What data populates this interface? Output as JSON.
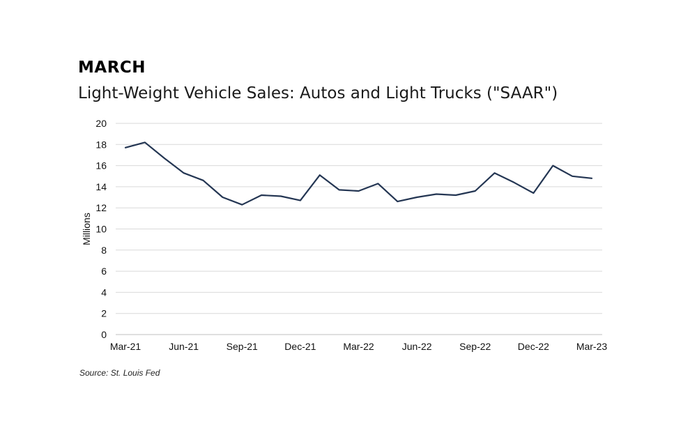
{
  "kicker": "MARCH",
  "source": "Source: St. Louis Fed",
  "colors": {
    "line": "#243653",
    "grid": "#d9d9d9",
    "axis": "#bfbfbf"
  },
  "chart_data": {
    "type": "line",
    "title": "Light-Weight Vehicle Sales: Autos and Light Trucks (\"SAAR\")",
    "xlabel": "",
    "ylabel": "Millions",
    "ylim": [
      0,
      20
    ],
    "yticks": [
      0,
      2,
      4,
      6,
      8,
      10,
      12,
      14,
      16,
      18,
      20
    ],
    "grid": true,
    "legend": "none",
    "x": [
      "Mar-21",
      "Apr-21",
      "May-21",
      "Jun-21",
      "Jul-21",
      "Aug-21",
      "Sep-21",
      "Oct-21",
      "Nov-21",
      "Dec-21",
      "Jan-22",
      "Feb-22",
      "Mar-22",
      "Apr-22",
      "May-22",
      "Jun-22",
      "Jul-22",
      "Aug-22",
      "Sep-22",
      "Oct-22",
      "Nov-22",
      "Dec-22",
      "Jan-23",
      "Feb-23",
      "Mar-23"
    ],
    "xtick_labels": [
      "Mar-21",
      "Jun-21",
      "Sep-21",
      "Dec-21",
      "Mar-22",
      "Jun-22",
      "Sep-22",
      "Dec-22",
      "Mar-23"
    ],
    "series": [
      {
        "values": [
          17.7,
          18.2,
          16.7,
          15.3,
          14.6,
          13.0,
          12.3,
          13.2,
          13.1,
          12.7,
          15.1,
          13.7,
          13.6,
          14.3,
          12.6,
          13.0,
          13.3,
          13.2,
          13.6,
          15.3,
          14.4,
          13.4,
          16.0,
          15.0,
          14.8
        ]
      }
    ]
  }
}
